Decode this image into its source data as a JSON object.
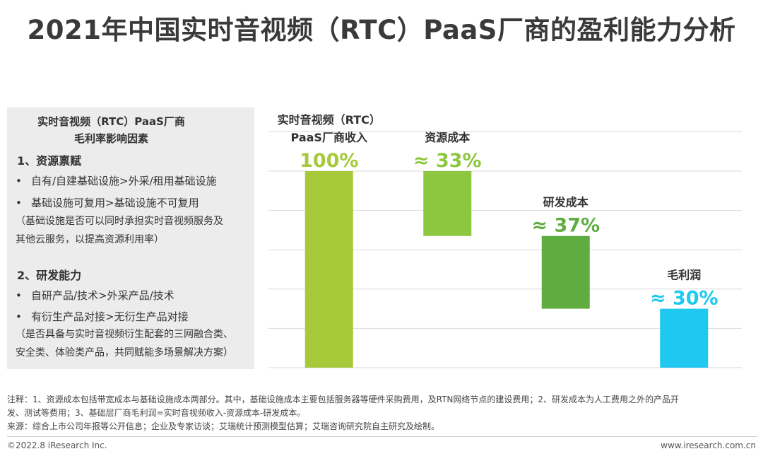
{
  "title": "2021年中国实时音视频（RTC）PaaS厂商的盈利能力分析",
  "panel": {
    "heading_line1": "实时音视频（RTC）PaaS厂商",
    "heading_line2": "毛利率影响因素",
    "section1": {
      "title": "1、资源禀赋",
      "bullets": [
        "自有/自建基础设施>外采/租用基础设施",
        "基础设施可复用>基础设施不可复用"
      ],
      "note_line1": "（基础设施是否可以同时承担实时音视频服务及",
      "note_line2": "其他云服务，以提高资源利用率）"
    },
    "section2": {
      "title": "2、研发能力",
      "bullets": [
        "自研产品/技术>外采产品/技术",
        "有衍生产品对接>无衍生产品对接"
      ],
      "note_line1": "（是否具备与实时音视频衍生配套的三网融合类、",
      "note_line2": "安全类、体验类产品，共同赋能多场景解决方案）"
    },
    "bullet_symbol": "•"
  },
  "chart_data": {
    "type": "bar",
    "subtype": "waterfall",
    "ylim": [
      0,
      100
    ],
    "grid": true,
    "categories": [
      {
        "label_lines": [
          "实时音视频（RTC）",
          "PaaS厂商收入"
        ],
        "value": 100,
        "base": 0,
        "value_text": "100%",
        "color": "#a6c93a"
      },
      {
        "label_lines": [
          "资源成本"
        ],
        "value": 33,
        "base": 67,
        "value_text": "≈ 33%",
        "color": "#8dc63f"
      },
      {
        "label_lines": [
          "研发成本"
        ],
        "value": 37,
        "base": 30,
        "value_text": "≈ 37%",
        "color": "#5fad41"
      },
      {
        "label_lines": [
          "毛利润"
        ],
        "value": 30,
        "base": 0,
        "value_text": "≈ 30%",
        "color": "#1ec8ef"
      }
    ]
  },
  "footnotes": {
    "line1": "注释：1、资源成本包括带宽成本与基础设施成本两部分。其中，基础设施成本主要包括服务器等硬件采购费用，及RTN网络节点的建设费用；2、研发成本为人工费用之外的产品开",
    "line2": "发、测试等费用；3、基础层厂商毛利润=实时音视频收入-资源成本-研发成本。",
    "line3": "来源：综合上市公司年报等公开信息；企业及专家访谈；艾瑞统计预测模型估算；艾瑞咨询研究院自主研究及绘制。"
  },
  "footer": {
    "copyright": "©2022.8 iResearch Inc.",
    "website": "www.iresearch.com.cn"
  }
}
